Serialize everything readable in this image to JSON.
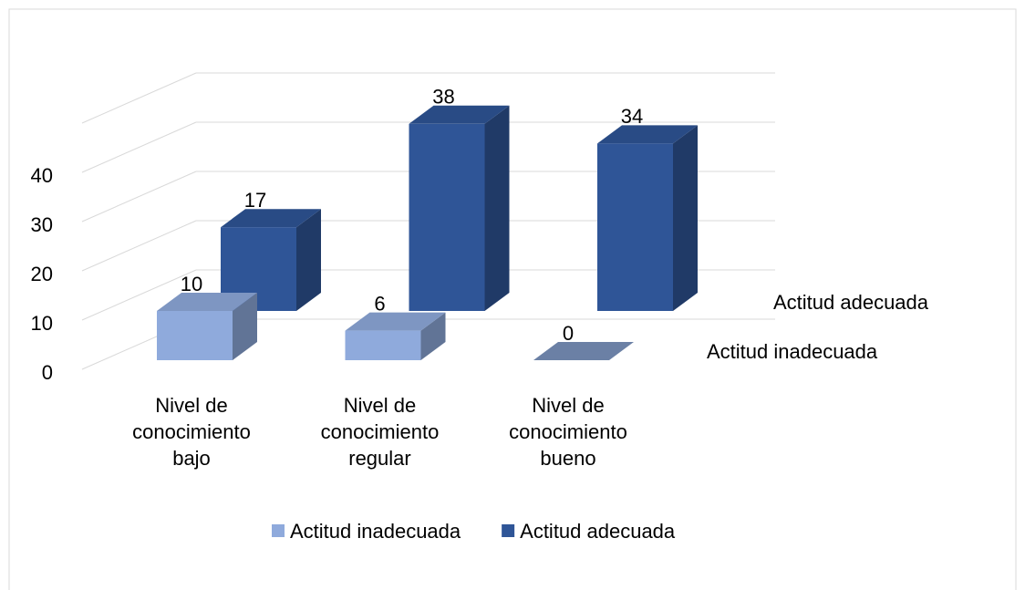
{
  "chart_data": {
    "type": "bar3d",
    "categories": [
      "Nivel de conocimiento bajo",
      "Nivel de conocimiento regular",
      "Nivel de conocimiento bueno"
    ],
    "series": [
      {
        "name": "Actitud inadecuada",
        "color": "#8faadc",
        "values": [
          10,
          6,
          0
        ]
      },
      {
        "name": "Actitud adecuada",
        "color": "#2f5597",
        "values": [
          17,
          38,
          34
        ]
      }
    ],
    "ylim": [
      0,
      50
    ],
    "yticks": [
      0,
      10,
      20,
      30,
      40
    ],
    "grid": true,
    "legend": "bottom"
  }
}
